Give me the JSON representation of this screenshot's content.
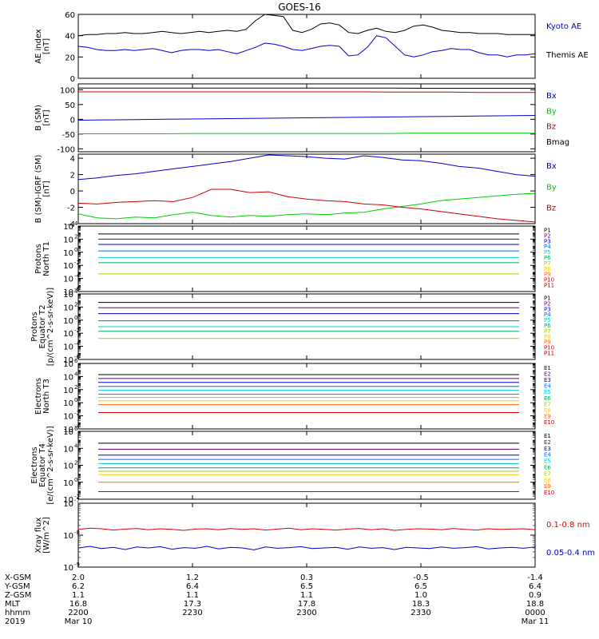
{
  "title": "GOES-16",
  "chart_data": [
    {
      "type": "line",
      "ylabel": "AE index\n[nT]",
      "ylim": [
        0,
        60
      ],
      "yticks": [
        0,
        20,
        40,
        60
      ],
      "yticklabels": [
        "0",
        "20",
        "40",
        "60"
      ],
      "series": [
        {
          "name": "Kyoto AE",
          "color": "#0000cc",
          "values": [
            30,
            29,
            27,
            26,
            26,
            27,
            26,
            27,
            28,
            26,
            24,
            26,
            27,
            27,
            26,
            27,
            25,
            23,
            26,
            29,
            33,
            32,
            30,
            27,
            26,
            28,
            30,
            31,
            30,
            21,
            22,
            29,
            40,
            38,
            30,
            22,
            20,
            22,
            25,
            26,
            28,
            27,
            27,
            24,
            22,
            22,
            20,
            22,
            22,
            23
          ]
        },
        {
          "name": "Themis AE",
          "color": "#000000",
          "values": [
            40,
            41,
            41,
            42,
            42,
            43,
            42,
            42,
            43,
            44,
            43,
            42,
            43,
            44,
            43,
            44,
            45,
            44,
            46,
            54,
            60,
            59,
            58,
            45,
            43,
            46,
            51,
            52,
            50,
            43,
            42,
            45,
            47,
            44,
            43,
            45,
            49,
            50,
            48,
            45,
            44,
            43,
            43,
            42,
            42,
            42,
            41,
            41,
            41,
            41
          ]
        }
      ]
    },
    {
      "type": "line",
      "ylabel": "B (SM)\n[nT]",
      "ylim": [
        -110,
        120
      ],
      "yticks": [
        -100,
        -50,
        0,
        50,
        100
      ],
      "yticklabels": [
        "-100",
        "-50",
        "0",
        "50",
        "100"
      ],
      "series": [
        {
          "name": "Bx",
          "color": "#0000cc",
          "values": [
            -3,
            -2,
            -1,
            0,
            1,
            2,
            3,
            4,
            5,
            6,
            7,
            8,
            9,
            10,
            11,
            12,
            13
          ]
        },
        {
          "name": "By",
          "color": "#00cc00",
          "values": [
            -49,
            -49,
            -49,
            -49,
            -48,
            -48,
            -48,
            -48,
            -48,
            -48,
            -48,
            -48,
            -47,
            -47,
            -47,
            -47,
            -47
          ]
        },
        {
          "name": "Bz",
          "color": "#cc0000",
          "values": [
            93,
            93,
            93,
            93,
            93,
            93,
            93,
            93,
            93,
            93,
            93,
            92,
            92,
            92,
            91,
            91,
            91
          ]
        },
        {
          "name": "Bmag",
          "color": "#000000",
          "values": [
            106,
            106,
            106,
            106,
            106,
            106,
            106,
            106,
            106,
            106,
            106,
            106,
            105,
            105,
            105,
            105,
            105
          ]
        }
      ]
    },
    {
      "type": "line",
      "ylabel": "B (SM)-IGRF (SM)\n[nT]",
      "ylim": [
        -4,
        4.5
      ],
      "yticks": [
        -4,
        -2,
        0,
        2,
        4
      ],
      "yticklabels": [
        "-4",
        "-2",
        "0",
        "2",
        "4"
      ],
      "series": [
        {
          "name": "Bx",
          "color": "#0000cc",
          "values": [
            1.4,
            1.6,
            1.9,
            2.1,
            2.4,
            2.7,
            3.0,
            3.3,
            3.6,
            4.0,
            4.4,
            4.3,
            4.2,
            4.0,
            3.9,
            4.3,
            4.1,
            3.8,
            3.7,
            3.4,
            3.0,
            2.8,
            2.4,
            2.0,
            1.8
          ]
        },
        {
          "name": "By",
          "color": "#00cc00",
          "values": [
            -2.8,
            -3.3,
            -3.4,
            -3.2,
            -3.3,
            -2.9,
            -2.6,
            -3.0,
            -3.2,
            -3.0,
            -3.1,
            -2.9,
            -2.8,
            -2.9,
            -2.7,
            -2.6,
            -2.2,
            -1.9,
            -1.6,
            -1.2,
            -1.0,
            -0.8,
            -0.6,
            -0.4,
            -0.3
          ]
        },
        {
          "name": "Bz",
          "color": "#cc0000",
          "values": [
            -1.5,
            -1.6,
            -1.4,
            -1.3,
            -1.2,
            -1.3,
            -0.8,
            0.2,
            0.2,
            -0.2,
            -0.1,
            -0.7,
            -1.0,
            -1.2,
            -1.3,
            -1.6,
            -1.7,
            -2.0,
            -2.2,
            -2.5,
            -2.8,
            -3.1,
            -3.4,
            -3.6,
            -3.8
          ]
        }
      ]
    },
    {
      "type": "line",
      "ylabel": "Protons\nNorth T1",
      "ylog": true,
      "ylim_exp": [
        -6,
        4
      ],
      "ytick_exps": [
        -6,
        -4,
        -2,
        0,
        2,
        4
      ],
      "yticklabels": [
        "10",
        "10",
        "10",
        "10",
        "10",
        "10"
      ],
      "ytick_superscripts": [
        "-6",
        "-4",
        "-2",
        "0",
        "2",
        "4"
      ],
      "channels": [
        "P1",
        "P2",
        "P3",
        "P4",
        "P5",
        "P6",
        "P7",
        "P8",
        "P9",
        "P10",
        "P11"
      ],
      "channel_colors": [
        "#000000",
        "#660066",
        "#0000cc",
        "#0066ff",
        "#00cccc",
        "#00aa66",
        "#aacc00",
        "#ffcc00",
        "#ff6600",
        "#dd0000",
        "#aa0000"
      ],
      "level_exps": [
        2.8,
        2.0,
        1.2,
        0.2,
        -0.8,
        -1.6,
        -3.3
      ]
    },
    {
      "type": "line",
      "ylabel": "Protons\nEquator T2\n[p/(cm^2-s-sr-keV)]",
      "ylog": true,
      "ylim_exp": [
        -6,
        4
      ],
      "ytick_exps": [
        -6,
        -4,
        -2,
        0,
        2,
        4
      ],
      "yticklabels": [
        "10",
        "10",
        "10",
        "10",
        "10",
        "10"
      ],
      "ytick_superscripts": [
        "-6",
        "-4",
        "-2",
        "0",
        "2",
        "4"
      ],
      "channels": [
        "P1",
        "P2",
        "P3",
        "P4",
        "P5",
        "P6",
        "P7",
        "P8",
        "P9",
        "P10",
        "P11"
      ],
      "channel_colors": [
        "#000000",
        "#660066",
        "#0000cc",
        "#0066ff",
        "#00cccc",
        "#00aa66",
        "#aacc00",
        "#ffcc00",
        "#ff6600",
        "#dd0000",
        "#aa0000"
      ],
      "level_exps": [
        2.7,
        1.9,
        1.0,
        -0.1,
        -1.0,
        -1.7,
        -2.8
      ]
    },
    {
      "type": "line",
      "ylabel": "Electrons\nNorth T3",
      "ylog": true,
      "ylim_exp": [
        -4,
        6
      ],
      "ytick_exps": [
        -4,
        -2,
        0,
        2,
        4,
        6
      ],
      "yticklabels": [
        "10",
        "10",
        "10",
        "10",
        "10",
        "10"
      ],
      "ytick_superscripts": [
        "-4",
        "-2",
        "0",
        "2",
        "4",
        "6"
      ],
      "channels": [
        "E1",
        "E2",
        "E3",
        "E4",
        "E5",
        "E6",
        "E7",
        "E8",
        "E9",
        "E10"
      ],
      "channel_colors": [
        "#000000",
        "#660066",
        "#0000cc",
        "#0066ff",
        "#00cccc",
        "#00aa66",
        "#aacc00",
        "#ffcc00",
        "#ff6600",
        "#cc0000"
      ],
      "level_exps": [
        4.3,
        3.7,
        3.1,
        2.5,
        1.9,
        1.3,
        0.8,
        0.3,
        -0.3,
        -1.5
      ]
    },
    {
      "type": "line",
      "ylabel": "Electrons\nEquator T4\n[e/(cm^2-s-sr-keV)]",
      "ylog": true,
      "ylim_exp": [
        -2,
        6
      ],
      "ytick_exps": [
        -2,
        0,
        2,
        4,
        6
      ],
      "yticklabels": [
        "10",
        "10",
        "10",
        "10",
        "10"
      ],
      "ytick_superscripts": [
        "-2",
        "0",
        "2",
        "4",
        "6"
      ],
      "channels": [
        "E1",
        "E2",
        "E3",
        "E4",
        "E5",
        "E6",
        "E7",
        "E8",
        "E9",
        "E10"
      ],
      "channel_colors": [
        "#000000",
        "#660066",
        "#0000cc",
        "#0066ff",
        "#00cccc",
        "#00aa66",
        "#aacc00",
        "#ffcc00",
        "#ff6600",
        "#cc0000"
      ],
      "level_exps": [
        4.6,
        3.9,
        3.2,
        2.7,
        2.2,
        1.7,
        1.3,
        0.9,
        0.0,
        -1.1
      ]
    },
    {
      "type": "line",
      "ylabel": "Xray flux\n[W/m^2]",
      "ylog": true,
      "ylim_exp": [
        -9,
        -7
      ],
      "ytick_exps": [
        -9,
        -8,
        -7
      ],
      "yticklabels": [
        "10",
        "10",
        "10"
      ],
      "ytick_superscripts": [
        "-9",
        "-8",
        "-7"
      ],
      "series": [
        {
          "name": "0.1-0.8 nm",
          "color": "#dd0000",
          "values_exp": [
            -7.82,
            -7.78,
            -7.8,
            -7.84,
            -7.81,
            -7.79,
            -7.83,
            -7.8,
            -7.82,
            -7.85,
            -7.81,
            -7.8,
            -7.83,
            -7.79,
            -7.82,
            -7.8,
            -7.84,
            -7.81,
            -7.78,
            -7.83,
            -7.8,
            -7.82,
            -7.84,
            -7.81,
            -7.79,
            -7.83,
            -7.8,
            -7.85,
            -7.82,
            -7.8,
            -7.81,
            -7.83,
            -7.79,
            -7.82,
            -7.84,
            -7.8,
            -7.82,
            -7.81,
            -7.8,
            -7.83
          ]
        },
        {
          "name": "0.05-0.4 nm",
          "color": "#0000cc",
          "values_exp": [
            -8.4,
            -8.35,
            -8.42,
            -8.38,
            -8.45,
            -8.37,
            -8.4,
            -8.36,
            -8.44,
            -8.39,
            -8.41,
            -8.35,
            -8.43,
            -8.38,
            -8.4,
            -8.46,
            -8.37,
            -8.41,
            -8.39,
            -8.36,
            -8.42,
            -8.4,
            -8.38,
            -8.44,
            -8.37,
            -8.41,
            -8.39,
            -8.45,
            -8.38,
            -8.4,
            -8.42,
            -8.37,
            -8.41,
            -8.39,
            -8.36,
            -8.43,
            -8.4,
            -8.38,
            -8.41,
            -8.37
          ]
        }
      ]
    }
  ],
  "footer": {
    "rows": [
      {
        "label": "X-GSM",
        "values": [
          "2.0",
          "1.2",
          "0.3",
          "-0.5",
          "-1.4"
        ]
      },
      {
        "label": "Y-GSM",
        "values": [
          "6.2",
          "6.4",
          "6.5",
          "6.5",
          "6.4"
        ]
      },
      {
        "label": "Z-GSM",
        "values": [
          "1.1",
          "1.1",
          "1.1",
          "1.0",
          "0.9"
        ]
      },
      {
        "label": "MLT",
        "values": [
          "16.8",
          "17.3",
          "17.8",
          "18.3",
          "18.8"
        ]
      },
      {
        "label": "hhmm",
        "values": [
          "2200",
          "2230",
          "2300",
          "2330",
          "0000"
        ]
      },
      {
        "label": "2019",
        "values": [
          "Mar 10",
          "",
          "",
          "",
          "Mar 11"
        ]
      }
    ]
  }
}
